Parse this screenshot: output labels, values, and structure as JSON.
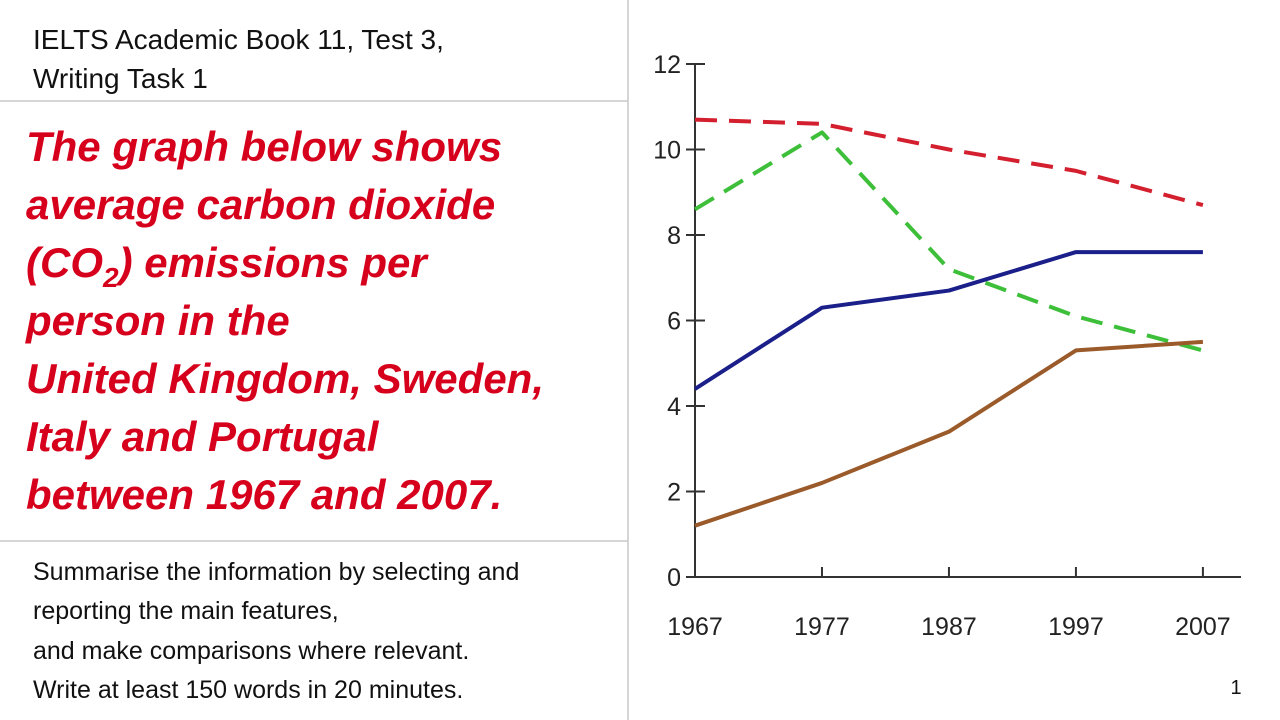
{
  "header": {
    "lines": [
      "IELTS Academic Book 11, Test 3,",
      "Writing Task 1"
    ]
  },
  "prompt": {
    "lines": [
      "The graph below shows",
      "average carbon dioxide",
      [
        "(CO",
        "2",
        ") emissions per"
      ],
      "person in the",
      "United Kingdom, Sweden,",
      "Italy and Portugal",
      "between 1967 and 2007."
    ]
  },
  "instructions": {
    "lines": [
      "Summarise the information by selecting and",
      "reporting the main features,",
      "and make comparisons where relevant.",
      "Write at least 150 words in 20 minutes."
    ]
  },
  "chart_data": {
    "type": "line",
    "x": [
      1967,
      1977,
      1987,
      1997,
      2007
    ],
    "xlim": [
      1967,
      2010
    ],
    "xticks": [
      1967,
      1977,
      1987,
      1997,
      2007
    ],
    "ylim": [
      0,
      12
    ],
    "yticks": [
      0,
      2,
      4,
      6,
      8,
      10,
      12
    ],
    "series": [
      {
        "color": "#d31f2e",
        "dashed": true,
        "values": [
          10.7,
          10.6,
          10.0,
          9.5,
          8.7
        ]
      },
      {
        "color": "#3dbf3a",
        "dashed": true,
        "values": [
          8.6,
          10.4,
          7.2,
          6.1,
          5.3
        ]
      },
      {
        "color": "#1b1f8a",
        "dashed": false,
        "values": [
          4.4,
          6.3,
          6.7,
          7.6,
          7.6
        ]
      },
      {
        "color": "#9b5a2a",
        "dashed": false,
        "values": [
          1.2,
          2.2,
          3.4,
          5.3,
          5.5
        ]
      }
    ]
  },
  "page_number": "1"
}
